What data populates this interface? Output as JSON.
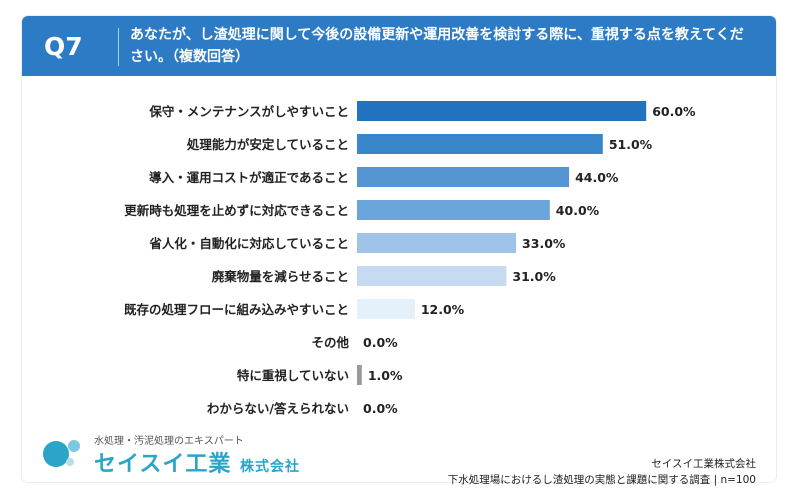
{
  "header": {
    "question_no": "Q7",
    "question_text": "あなたが、し渣処理に関して今後の設備更新や運用改善を検討する際に、重視する点を教えてください。（複数回答）"
  },
  "footer": {
    "logo_tagline": "水処理・汚泥処理のエキスパート",
    "logo_name": "セイスイ工業",
    "logo_suffix": "株式会社",
    "company": "セイスイ工業株式会社",
    "survey": "下水処理場におけるし渣処理の実態と課題に関する調査 | n=100"
  },
  "chart_data": {
    "type": "bar",
    "orientation": "horizontal",
    "title": "",
    "xlabel": "",
    "ylabel": "",
    "xlim": [
      0,
      100
    ],
    "grid": false,
    "categories": [
      "保守・メンテナンスがしやすいこと",
      "処理能力が安定していること",
      "導入・運用コストが適正であること",
      "更新時も処理を止めずに対応できること",
      "省人化・自動化に対応していること",
      "廃棄物量を減らせること",
      "既存の処理フローに組み込みやすいこと",
      "その他",
      "特に重視していない",
      "わからない/答えられない"
    ],
    "values": [
      60.0,
      51.0,
      44.0,
      40.0,
      33.0,
      31.0,
      12.0,
      0.0,
      1.0,
      0.0
    ],
    "value_labels": [
      "60.0%",
      "51.0%",
      "44.0%",
      "40.0%",
      "33.0%",
      "31.0%",
      "12.0%",
      "0.0%",
      "1.0%",
      "0.0%"
    ],
    "colors": [
      "#2173c0",
      "#3a86cb",
      "#5595d1",
      "#6aa5db",
      "#9fc4e8",
      "#c6dbf1",
      "#e4f0fa",
      "#e4f0fa",
      "#9a9a9a",
      "#e4f0fa"
    ]
  }
}
